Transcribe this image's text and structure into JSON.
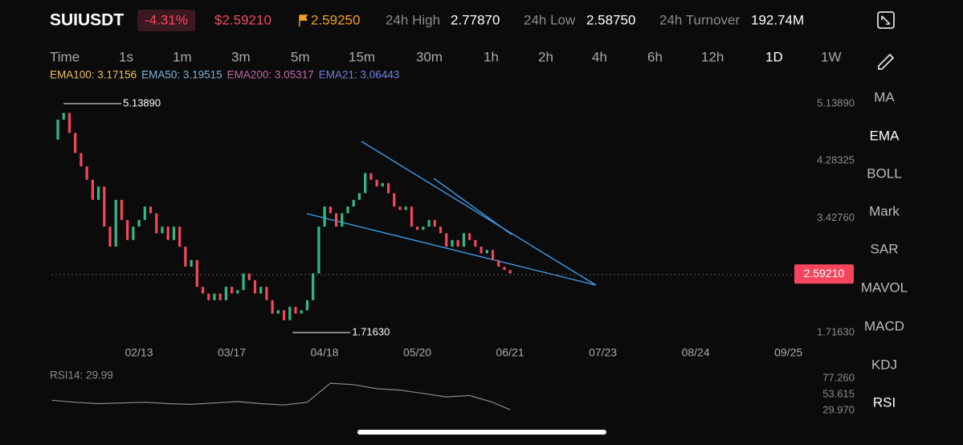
{
  "header": {
    "symbol": "SUIUSDT",
    "change": "-4.31%",
    "price": "$2.59210",
    "mark_price": "2.59250",
    "stats": [
      {
        "label": "24h High",
        "value": "2.77870"
      },
      {
        "label": "24h Low",
        "value": "2.58750"
      },
      {
        "label": "24h Turnover",
        "value": "192.74M"
      }
    ]
  },
  "intervals": [
    "Time",
    "1s",
    "1m",
    "3m",
    "5m",
    "15m",
    "30m",
    "1h",
    "2h",
    "4h",
    "6h",
    "12h",
    "1D",
    "1W"
  ],
  "indicator_legend": [
    {
      "text": "EMA100: 3.17156",
      "color": "#e8c05a"
    },
    {
      "text": "EMA50: 3.19515",
      "color": "#7fb2d8"
    },
    {
      "text": "EMA200: 3.05317",
      "color": "#c06aa8"
    },
    {
      "text": "EMA21: 3.06443",
      "color": "#6f7fe0"
    }
  ],
  "side_menu": [
    "MA",
    "EMA",
    "BOLL",
    "Mark",
    "SAR",
    "MAVOL",
    "MACD",
    "KDJ",
    "RSI"
  ],
  "chart_data": [
    {
      "type": "candle",
      "x": [
        -30,
        -28,
        -26,
        -24,
        -22,
        -20,
        -18,
        -16,
        -14,
        -12,
        -10,
        -8,
        -6,
        -4,
        -2,
        0,
        2,
        4,
        6,
        8,
        10,
        12,
        14,
        16,
        18,
        20,
        22,
        24,
        26,
        28,
        30,
        32,
        34,
        36,
        38,
        40,
        42,
        44,
        46,
        48,
        50,
        52,
        54,
        56,
        58,
        60,
        62,
        64,
        66,
        68,
        70,
        72,
        74,
        76,
        78,
        80,
        82,
        84,
        86,
        88,
        90,
        92,
        94,
        96,
        98,
        100,
        102,
        104,
        106,
        108,
        110,
        112,
        114,
        116,
        118,
        120,
        122,
        124,
        126,
        128
      ],
      "values": [
        4.6,
        4.9,
        5.0,
        4.7,
        4.4,
        4.2,
        4.0,
        3.7,
        3.9,
        3.3,
        3.0,
        3.7,
        3.4,
        3.1,
        3.3,
        3.4,
        3.6,
        3.5,
        3.2,
        3.3,
        3.1,
        3.3,
        3.0,
        2.7,
        2.8,
        2.4,
        2.3,
        2.2,
        2.3,
        2.2,
        2.4,
        2.3,
        2.35,
        2.6,
        2.5,
        2.3,
        2.4,
        2.2,
        2.0,
        2.05,
        1.9,
        2.1,
        2.0,
        2.05,
        2.2,
        2.6,
        3.3,
        3.6,
        3.5,
        3.3,
        3.5,
        3.6,
        3.7,
        3.8,
        4.1,
        4.0,
        3.9,
        3.95,
        3.8,
        3.6,
        3.55,
        3.6,
        3.3,
        3.25,
        3.3,
        3.4,
        3.3,
        3.2,
        3.0,
        3.1,
        3.0,
        3.2,
        3.1,
        3.0,
        2.9,
        2.95,
        2.8,
        2.7,
        2.65,
        2.6
      ],
      "up_color": "#2ebd85",
      "down_color": "#f6465d",
      "xlim": [
        -31,
        229
      ],
      "ylim": [
        1.7163,
        5.1389
      ],
      "xticks": [
        {
          "value": 0,
          "label": "02/13"
        },
        {
          "value": 32,
          "label": "03/17"
        },
        {
          "value": 64,
          "label": "04/18"
        },
        {
          "value": 96,
          "label": "05/20"
        },
        {
          "value": 128,
          "label": "06/21"
        },
        {
          "value": 160,
          "label": "07/23"
        },
        {
          "value": 192,
          "label": "08/24"
        },
        {
          "value": 224,
          "label": "09/25"
        }
      ],
      "yticks": [
        {
          "value": 5.1389,
          "label": "5.13890"
        },
        {
          "value": 4.28325,
          "label": "4.28325"
        },
        {
          "value": 3.4276,
          "label": "3.42760"
        },
        {
          "value": 1.7163,
          "label": "1.71630"
        }
      ],
      "current_price": {
        "value": 2.5921,
        "label": "2.59210"
      },
      "annotations": [
        {
          "x": -26,
          "value": 5.1389,
          "label": "5.13890"
        },
        {
          "x": 53,
          "value": 1.7163,
          "label": "1.71630"
        }
      ]
    },
    {
      "type": "line",
      "title": "RSI14: 29.99",
      "color": "#8a8a8a",
      "x": [
        -30,
        -22,
        -14,
        -6,
        2,
        10,
        18,
        26,
        34,
        42,
        50,
        58,
        66,
        74,
        82,
        90,
        98,
        106,
        114,
        122,
        128
      ],
      "values": [
        45,
        42,
        40,
        41,
        42,
        40,
        39,
        41,
        43,
        40,
        38,
        42,
        70,
        68,
        62,
        60,
        55,
        50,
        52,
        42,
        31
      ],
      "xlim": [
        -31,
        229
      ],
      "ylim": [
        29.97,
        77.26
      ],
      "yticks": [
        {
          "value": 77.26,
          "label": "77.260"
        },
        {
          "value": 53.615,
          "label": "53.615"
        },
        {
          "value": 29.97,
          "label": "29.970"
        }
      ]
    }
  ]
}
